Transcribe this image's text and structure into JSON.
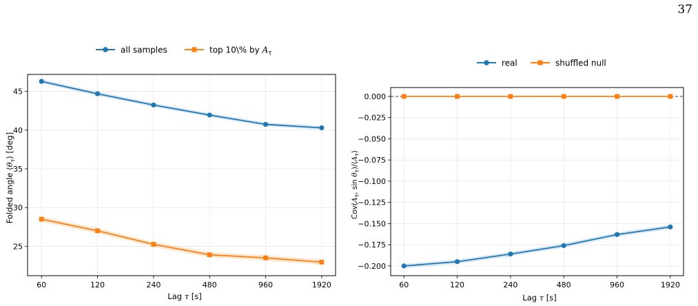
{
  "page_number": "37",
  "chart_data": [
    {
      "type": "line",
      "title": "",
      "xlabel": "Lag τ [s]",
      "ylabel": "Folded angle ⟨θτ⟩ [deg]",
      "x_scale": "log2",
      "x": [
        60,
        120,
        240,
        480,
        960,
        1920
      ],
      "x_ticklabels": [
        "60",
        "120",
        "240",
        "480",
        "960",
        "1920"
      ],
      "xlim": [
        50.5,
        2280
      ],
      "ylim": [
        21.2,
        47.2
      ],
      "y_ticks": [
        25,
        30,
        35,
        40,
        45
      ],
      "y_ticklabels": [
        "25",
        "30",
        "35",
        "40",
        "45"
      ],
      "grid": true,
      "legend_position": "above",
      "series": [
        {
          "name": "all samples",
          "marker": "circle",
          "color": "#1f77b4",
          "values": [
            46.3,
            44.7,
            43.25,
            41.95,
            40.75,
            40.3
          ],
          "band_halfwidth": 0.25
        },
        {
          "name": "top 10\\% by Aτ",
          "marker": "square",
          "color": "#ff7f0e",
          "values": [
            28.5,
            27.0,
            25.25,
            23.9,
            23.5,
            22.95
          ],
          "band_halfwidth": 0.35
        }
      ]
    },
    {
      "type": "line",
      "title": "",
      "xlabel": "Lag τ [s]",
      "ylabel": "Cov(Aτ, sin θτ)/⟨Aτ⟩",
      "x_scale": "log2",
      "x": [
        60,
        120,
        240,
        480,
        960,
        1920
      ],
      "x_ticklabels": [
        "60",
        "120",
        "240",
        "480",
        "960",
        "1920"
      ],
      "xlim": [
        50.5,
        2280
      ],
      "ylim": [
        -0.2115,
        0.0105
      ],
      "y_ticks": [
        0.0,
        -0.025,
        -0.05,
        -0.075,
        -0.1,
        -0.125,
        -0.15,
        -0.175,
        -0.2
      ],
      "y_ticklabels": [
        "0.000",
        "−0.025",
        "−0.050",
        "−0.075",
        "−0.100",
        "−0.125",
        "−0.150",
        "−0.175",
        "−0.200"
      ],
      "grid": true,
      "zero_line": true,
      "legend_position": "above",
      "series": [
        {
          "name": "real",
          "marker": "circle",
          "color": "#1f77b4",
          "values": [
            -0.2,
            -0.195,
            -0.186,
            -0.176,
            -0.163,
            -0.154
          ],
          "band_halfwidth": 0.0025
        },
        {
          "name": "shuffled null",
          "marker": "square",
          "color": "#ff7f0e",
          "values": [
            0.0,
            0.0,
            0.0,
            0.0,
            0.0,
            0.0
          ],
          "band_halfwidth": 0.0005
        }
      ]
    }
  ]
}
